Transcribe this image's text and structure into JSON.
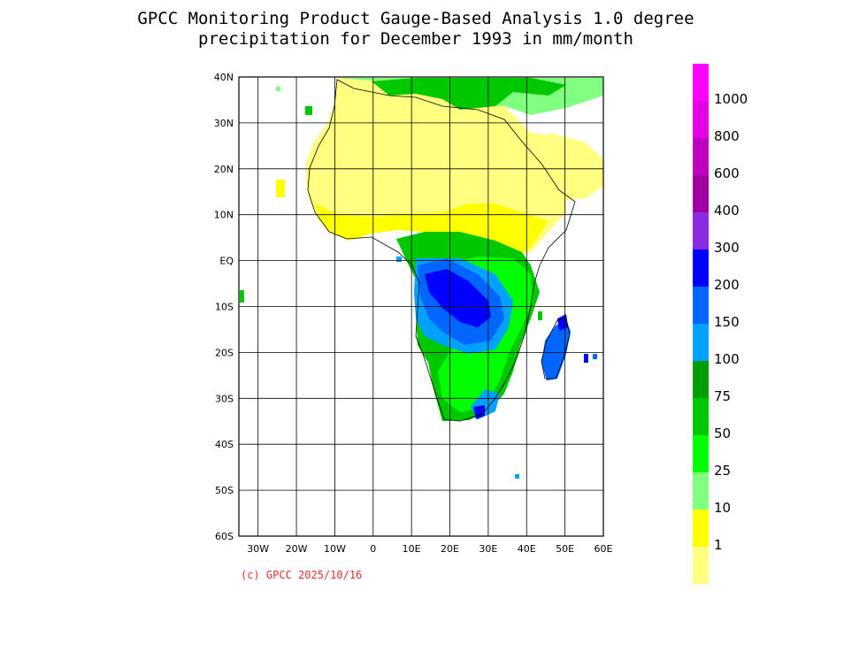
{
  "title": {
    "line1": "GPCC Monitoring Product Gauge-Based Analysis 1.0 degree",
    "line2": "precipitation for December  1993 in mm/month"
  },
  "copyright": "(c) GPCC 2025/10/16",
  "map": {
    "lat_labels": [
      "40N",
      "30N",
      "20N",
      "10N",
      "EQ",
      "10S",
      "20S",
      "30S",
      "40S",
      "50S",
      "60S"
    ],
    "lon_labels": [
      "30W",
      "20W",
      "10W",
      "0",
      "10E",
      "20E",
      "30E",
      "40E",
      "50E",
      "60E"
    ],
    "lat_range": [
      -60,
      40
    ],
    "lon_range": [
      -35,
      60
    ],
    "grid": true
  },
  "legend": {
    "labels": [
      "1000",
      "800",
      "600",
      "400",
      "300",
      "200",
      "150",
      "100",
      "75",
      "50",
      "25",
      "10",
      "1"
    ],
    "colors": [
      "#ff00ff",
      "#e600e6",
      "#c000c0",
      "#a000a0",
      "#8a2be2",
      "#0000ff",
      "#0066ff",
      "#00a2ff",
      "#009e00",
      "#00c800",
      "#00ff00",
      "#80ff80",
      "#ffff00",
      "#ffff80"
    ]
  },
  "regions": [
    {
      "category": "1",
      "color": "#ffff80"
    },
    {
      "category": "10",
      "color": "#ffff00"
    },
    {
      "category": "25",
      "color": "#80ff80"
    },
    {
      "category": "50",
      "color": "#00ff00"
    },
    {
      "category": "75",
      "color": "#00c800"
    },
    {
      "category": "100",
      "color": "#009e00"
    },
    {
      "category": "150",
      "color": "#00a2ff"
    },
    {
      "category": "200",
      "color": "#0066ff"
    },
    {
      "category": "300",
      "color": "#0000ff"
    }
  ]
}
